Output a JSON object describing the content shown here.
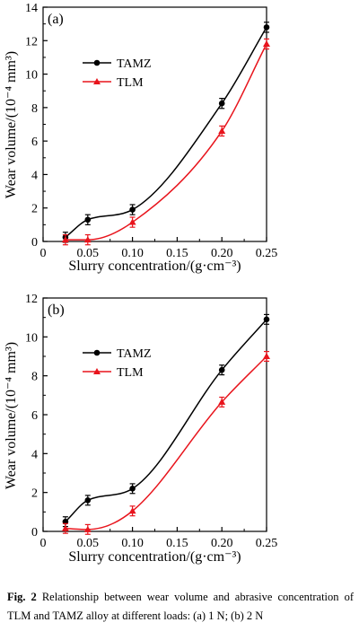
{
  "chart_data": [
    {
      "type": "line",
      "panel_label": "(a)",
      "xlabel": "Slurry concentration/(g·cm⁻³)",
      "ylabel": "Wear volume/(10⁻⁴ mm³)",
      "xlim": [
        0,
        0.25
      ],
      "ylim": [
        0,
        14
      ],
      "xticks": [
        "0",
        "0.05",
        "0.10",
        "0.15",
        "0.20",
        "0.25"
      ],
      "xtick_values": [
        0,
        0.05,
        0.1,
        0.15,
        0.2,
        0.25
      ],
      "yticks": [
        "0",
        "2",
        "4",
        "6",
        "8",
        "10",
        "12",
        "14"
      ],
      "ytick_values": [
        0,
        2,
        4,
        6,
        8,
        10,
        12,
        14
      ],
      "grid": false,
      "legend": "upper-left",
      "x": [
        0.025,
        0.05,
        0.1,
        0.2,
        0.25
      ],
      "series": [
        {
          "name": "TAMZ",
          "color": "#000000",
          "marker": "circle",
          "values": [
            0.25,
            1.3,
            1.9,
            8.25,
            12.8
          ],
          "errors": [
            0.3,
            0.3,
            0.3,
            0.3,
            0.3
          ]
        },
        {
          "name": "TLM",
          "color": "#e8141c",
          "marker": "triangle",
          "values": [
            0.1,
            0.1,
            1.15,
            6.6,
            11.8
          ],
          "errors": [
            0.3,
            0.3,
            0.3,
            0.3,
            0.3
          ]
        }
      ]
    },
    {
      "type": "line",
      "panel_label": "(b)",
      "xlabel": "Slurry concentration/(g·cm⁻³)",
      "ylabel": "Wear volume/(10⁻⁴ mm³)",
      "xlim": [
        0,
        0.25
      ],
      "ylim": [
        0,
        12
      ],
      "xticks": [
        "0",
        "0.05",
        "0.10",
        "0.15",
        "0.20",
        "0.25"
      ],
      "xtick_values": [
        0,
        0.05,
        0.1,
        0.15,
        0.2,
        0.25
      ],
      "yticks": [
        "0",
        "2",
        "4",
        "6",
        "8",
        "10",
        "12"
      ],
      "ytick_values": [
        0,
        2,
        4,
        6,
        8,
        10,
        12
      ],
      "grid": false,
      "legend": "upper-left",
      "x": [
        0.025,
        0.05,
        0.1,
        0.2,
        0.25
      ],
      "series": [
        {
          "name": "TAMZ",
          "color": "#000000",
          "marker": "circle",
          "values": [
            0.5,
            1.6,
            2.2,
            8.3,
            10.9
          ],
          "errors": [
            0.25,
            0.25,
            0.25,
            0.25,
            0.25
          ]
        },
        {
          "name": "TLM",
          "color": "#e8141c",
          "marker": "triangle",
          "values": [
            0.15,
            0.1,
            1.05,
            6.65,
            9.0
          ],
          "errors": [
            0.25,
            0.25,
            0.25,
            0.25,
            0.25
          ]
        }
      ]
    }
  ],
  "caption": {
    "label": "Fig. 2",
    "text": "Relationship between wear volume and abrasive concentration of TLM and TAMZ alloy at different loads: (a) 1 N; (b) 2 N"
  }
}
